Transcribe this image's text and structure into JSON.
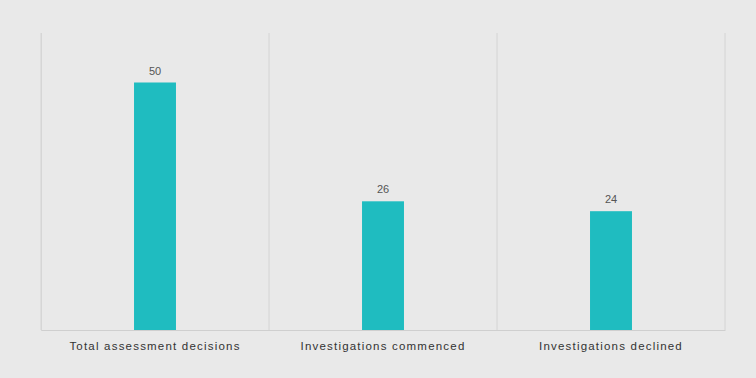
{
  "chart_data": {
    "type": "bar",
    "categories": [
      "Total assessment decisions",
      "Investigations commenced",
      "Investigations declined"
    ],
    "values": [
      50,
      26,
      24
    ],
    "color": "#1fbcc0",
    "ylim": [
      0,
      60
    ],
    "grid": true,
    "data_labels": true,
    "tick_labels": "x"
  }
}
